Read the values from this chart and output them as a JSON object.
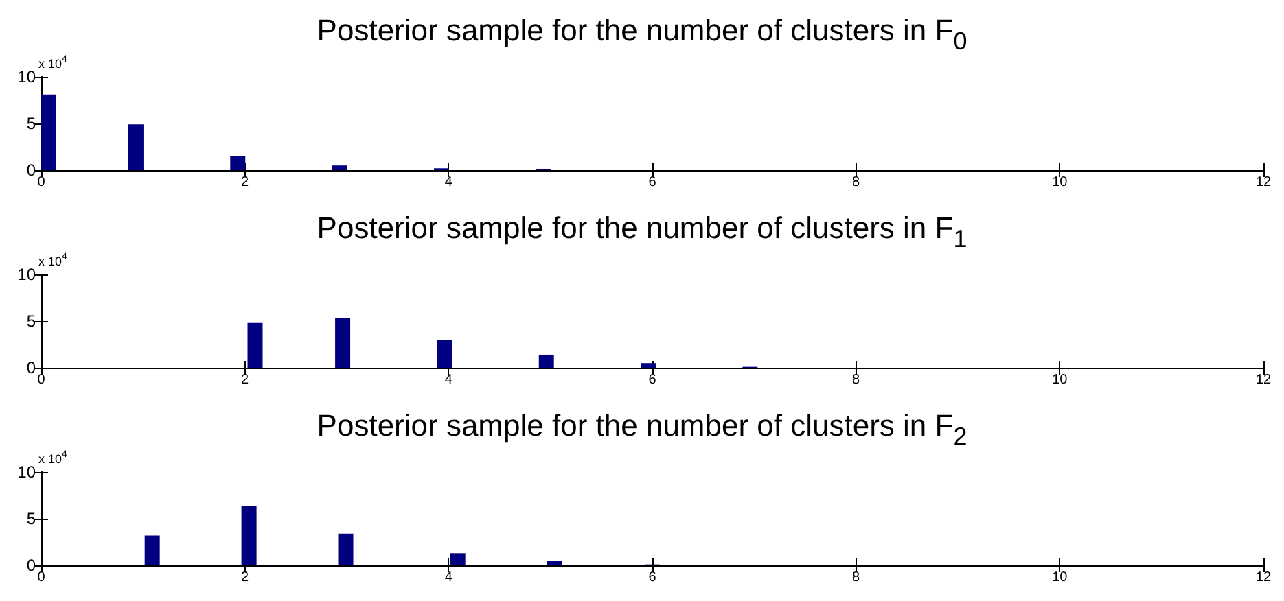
{
  "chart_data": [
    {
      "type": "bar",
      "title": "Posterior sample for the number of clusters in F$_{0}$",
      "x": [
        0.07,
        0.93,
        1.93,
        2.93,
        3.93,
        4.93
      ],
      "values": [
        8.1,
        4.9,
        1.5,
        0.5,
        0.2,
        0.1
      ],
      "color": "#000080",
      "xlim": [
        0,
        12
      ],
      "xticks": [
        0,
        2,
        4,
        6,
        8,
        10,
        12
      ],
      "ylim": [
        0,
        10
      ],
      "yticks": [
        0,
        5,
        10
      ],
      "annotations": [
        "x 10$^{4}$"
      ],
      "grid": false
    },
    {
      "type": "bar",
      "title": "Posterior sample for the number of clusters in F$_{1}$",
      "x": [
        2.1,
        2.96,
        3.96,
        4.96,
        5.96,
        6.96
      ],
      "values": [
        4.8,
        5.3,
        3.0,
        1.4,
        0.5,
        0.1
      ],
      "color": "#000080",
      "xlim": [
        0,
        12
      ],
      "xticks": [
        0,
        2,
        4,
        6,
        8,
        10,
        12
      ],
      "ylim": [
        0,
        10
      ],
      "yticks": [
        0,
        5,
        10
      ],
      "annotations": [
        "x 10$^{4}$"
      ],
      "grid": false
    },
    {
      "type": "bar",
      "title": "Posterior sample for the number of clusters in F$_{2}$",
      "x": [
        1.09,
        2.04,
        2.99,
        4.09,
        5.04,
        6.0
      ],
      "values": [
        3.2,
        6.4,
        3.4,
        1.3,
        0.5,
        0.1
      ],
      "color": "#000080",
      "xlim": [
        0,
        12
      ],
      "xticks": [
        0,
        2,
        4,
        6,
        8,
        10,
        12
      ],
      "ylim": [
        0,
        10
      ],
      "yticks": [
        0,
        5,
        10
      ],
      "annotations": [
        "x 10$^{4}$"
      ],
      "grid": false
    }
  ]
}
